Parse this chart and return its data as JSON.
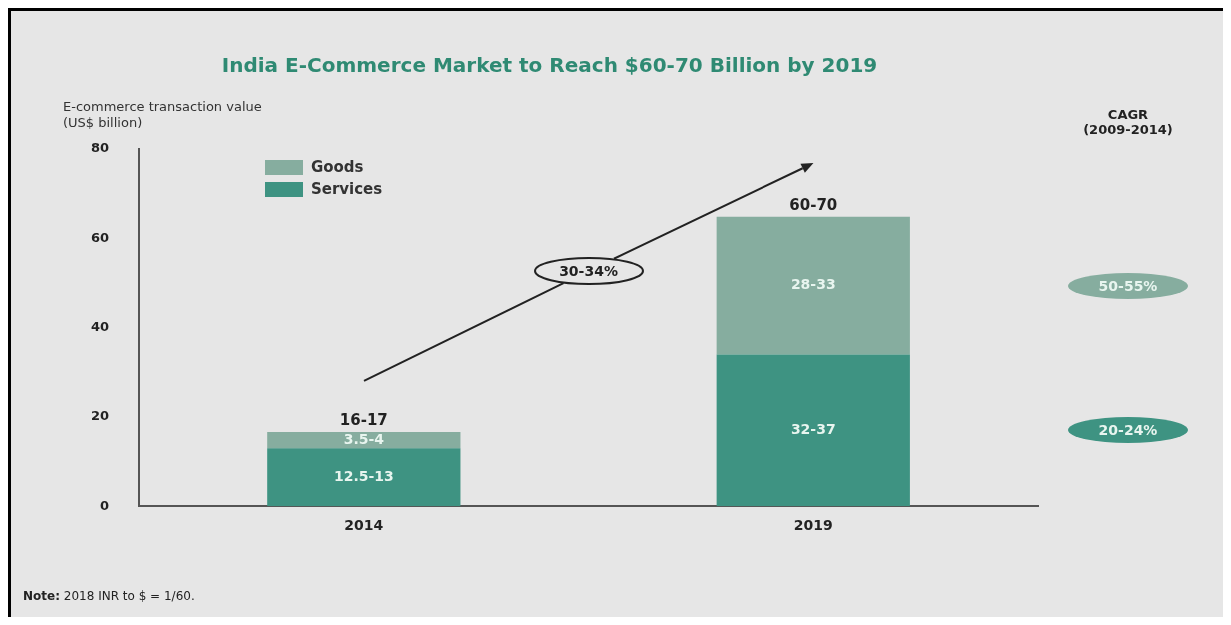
{
  "chart_data": {
    "type": "bar",
    "title": "India E-Commerce Market to Reach $60-70 Billion by 2019",
    "ylabel": "E-commerce transaction value (US$ billion)",
    "categories": [
      "2014",
      "2019"
    ],
    "stacked": true,
    "series": [
      {
        "name": "Services",
        "color": "#3e9382",
        "values": [
          13,
          34
        ],
        "value_labels": [
          "12.5-13",
          "32-37"
        ]
      },
      {
        "name": "Goods",
        "color": "#86ad9f",
        "values": [
          3.6,
          30.8
        ],
        "value_labels": [
          "3.5-4",
          "28-33"
        ]
      }
    ],
    "totals": [
      "16-17",
      "60-70"
    ],
    "ylim": [
      0,
      80
    ],
    "yticks": [
      0,
      20,
      40,
      60,
      80
    ],
    "grid": false,
    "legend": "top left",
    "annotations": [
      "30-34%",
      "CAGR (2009-2014)",
      "50-55%",
      "20-24%",
      "Note: 2018 INR to $ = 1/60."
    ]
  }
}
